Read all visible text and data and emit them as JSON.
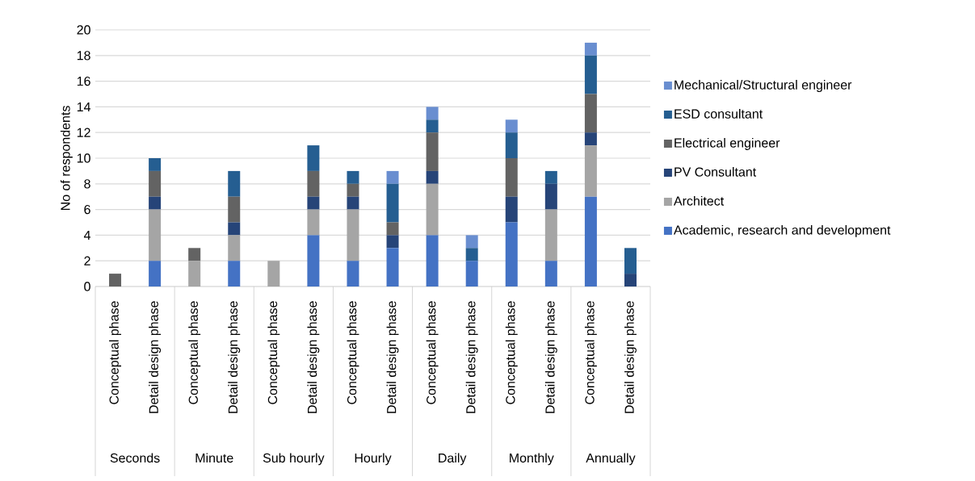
{
  "chart_data": {
    "type": "bar",
    "stacked": true,
    "ylabel": "No of respondents",
    "categories": [
      "Conceptual phase",
      "Detail design phase",
      "Conceptual phase",
      "Detail design phase",
      "Conceptual phase",
      "Detail design phase",
      "Conceptual phase",
      "Detail design phase",
      "Conceptual phase",
      "Detail design phase",
      "Conceptual phase",
      "Detail design phase",
      "Conceptual phase",
      "Detail design phase"
    ],
    "annotations": [
      "Seconds",
      "Minute",
      "Sub hourly",
      "Hourly",
      "Daily",
      "Monthly",
      "Annually"
    ],
    "series": [
      {
        "name": "Academic, research and development",
        "color": "#4472c4",
        "values": [
          0,
          2,
          0,
          2,
          0,
          4,
          2,
          3,
          4,
          2,
          5,
          2,
          7,
          0
        ]
      },
      {
        "name": "Architect",
        "color": "#a5a5a5",
        "values": [
          0,
          4,
          2,
          2,
          2,
          2,
          4,
          0,
          4,
          0,
          0,
          4,
          4,
          0
        ]
      },
      {
        "name": "PV Consultant",
        "color": "#264478",
        "values": [
          0,
          1,
          0,
          1,
          0,
          1,
          1,
          1,
          1,
          0,
          2,
          2,
          1,
          1
        ]
      },
      {
        "name": "Electrical engineer",
        "color": "#636363",
        "values": [
          1,
          2,
          1,
          2,
          0,
          2,
          1,
          1,
          3,
          0,
          3,
          0,
          3,
          0
        ]
      },
      {
        "name": "ESD consultant",
        "color": "#255e91",
        "values": [
          0,
          1,
          0,
          2,
          0,
          2,
          1,
          3,
          1,
          1,
          2,
          1,
          3,
          2
        ]
      },
      {
        "name": "Mechanical/Structural engineer",
        "color": "#698ed0",
        "values": [
          0,
          0,
          0,
          0,
          0,
          0,
          0,
          1,
          1,
          1,
          1,
          0,
          1,
          0
        ]
      }
    ],
    "ylim": [
      0,
      20
    ],
    "yticks": [
      0,
      2,
      4,
      6,
      8,
      10,
      12,
      14,
      16,
      18,
      20
    ],
    "grid": "y",
    "legend": "right"
  }
}
